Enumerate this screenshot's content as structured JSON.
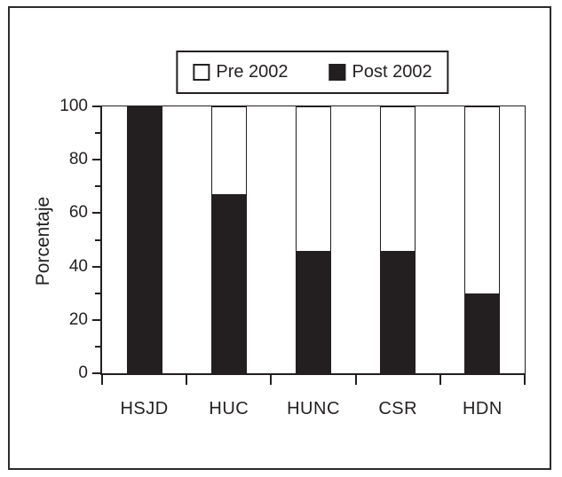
{
  "figure": {
    "background": "#ffffff",
    "border_color": "#2b2b2b",
    "ink_color": "#231f20"
  },
  "legend": {
    "items": [
      {
        "label": "Pre 2002",
        "swatch_color": "#ffffff",
        "swatch_style": "light"
      },
      {
        "label": "Post 2002",
        "swatch_color": "#231f20",
        "swatch_style": "dark"
      }
    ]
  },
  "chart_data": {
    "type": "bar",
    "stacked": true,
    "title": "",
    "xlabel": "",
    "ylabel": "Porcentaje",
    "categories": [
      "HSJD",
      "HUC",
      "HUNC",
      "CSR",
      "HDN"
    ],
    "series": [
      {
        "name": "Post 2002",
        "color": "#231f20",
        "values": [
          100,
          67,
          46,
          46,
          30
        ]
      },
      {
        "name": "Pre 2002",
        "color": "#ffffff",
        "values": [
          0,
          33,
          54,
          54,
          70
        ]
      }
    ],
    "ylim": [
      0,
      100
    ],
    "yticks_major": [
      0,
      20,
      40,
      60,
      80,
      100
    ],
    "yticks_minor": [
      10,
      30,
      50,
      70,
      90
    ],
    "grid": false,
    "legend_position": "top-center",
    "bar_outline_color": "#231f20"
  }
}
